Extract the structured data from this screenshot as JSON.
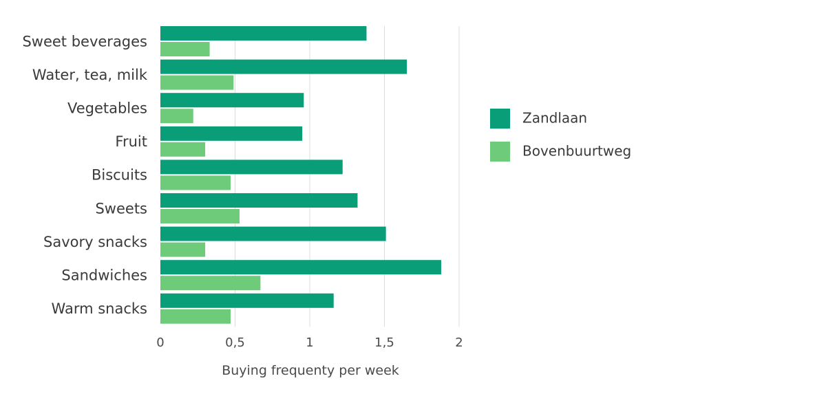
{
  "chart_data": {
    "type": "bar",
    "orientation": "horizontal",
    "categories": [
      "Sweet beverages",
      "Water, tea, milk",
      "Vegetables",
      "Fruit",
      "Biscuits",
      "Sweets",
      "Savory snacks",
      "Sandwiches",
      "Warm snacks"
    ],
    "series": [
      {
        "name": "Zandlaan",
        "color": "#0a9e78",
        "values": [
          1.38,
          1.65,
          0.96,
          0.95,
          1.22,
          1.32,
          1.51,
          1.88,
          1.16
        ]
      },
      {
        "name": "Bovenbuurtweg",
        "color": "#6ecb7a",
        "values": [
          0.33,
          0.49,
          0.22,
          0.3,
          0.47,
          0.53,
          0.3,
          0.67,
          0.47
        ]
      }
    ],
    "xlabel": "Buying frequenty per week",
    "xlim": [
      0,
      2
    ],
    "xticks": [
      0,
      0.5,
      1,
      1.5,
      2
    ],
    "xtick_labels": [
      "0",
      "0,5",
      "1",
      "1,5",
      "2"
    ],
    "grid": "vertical",
    "legend_position": "right"
  }
}
